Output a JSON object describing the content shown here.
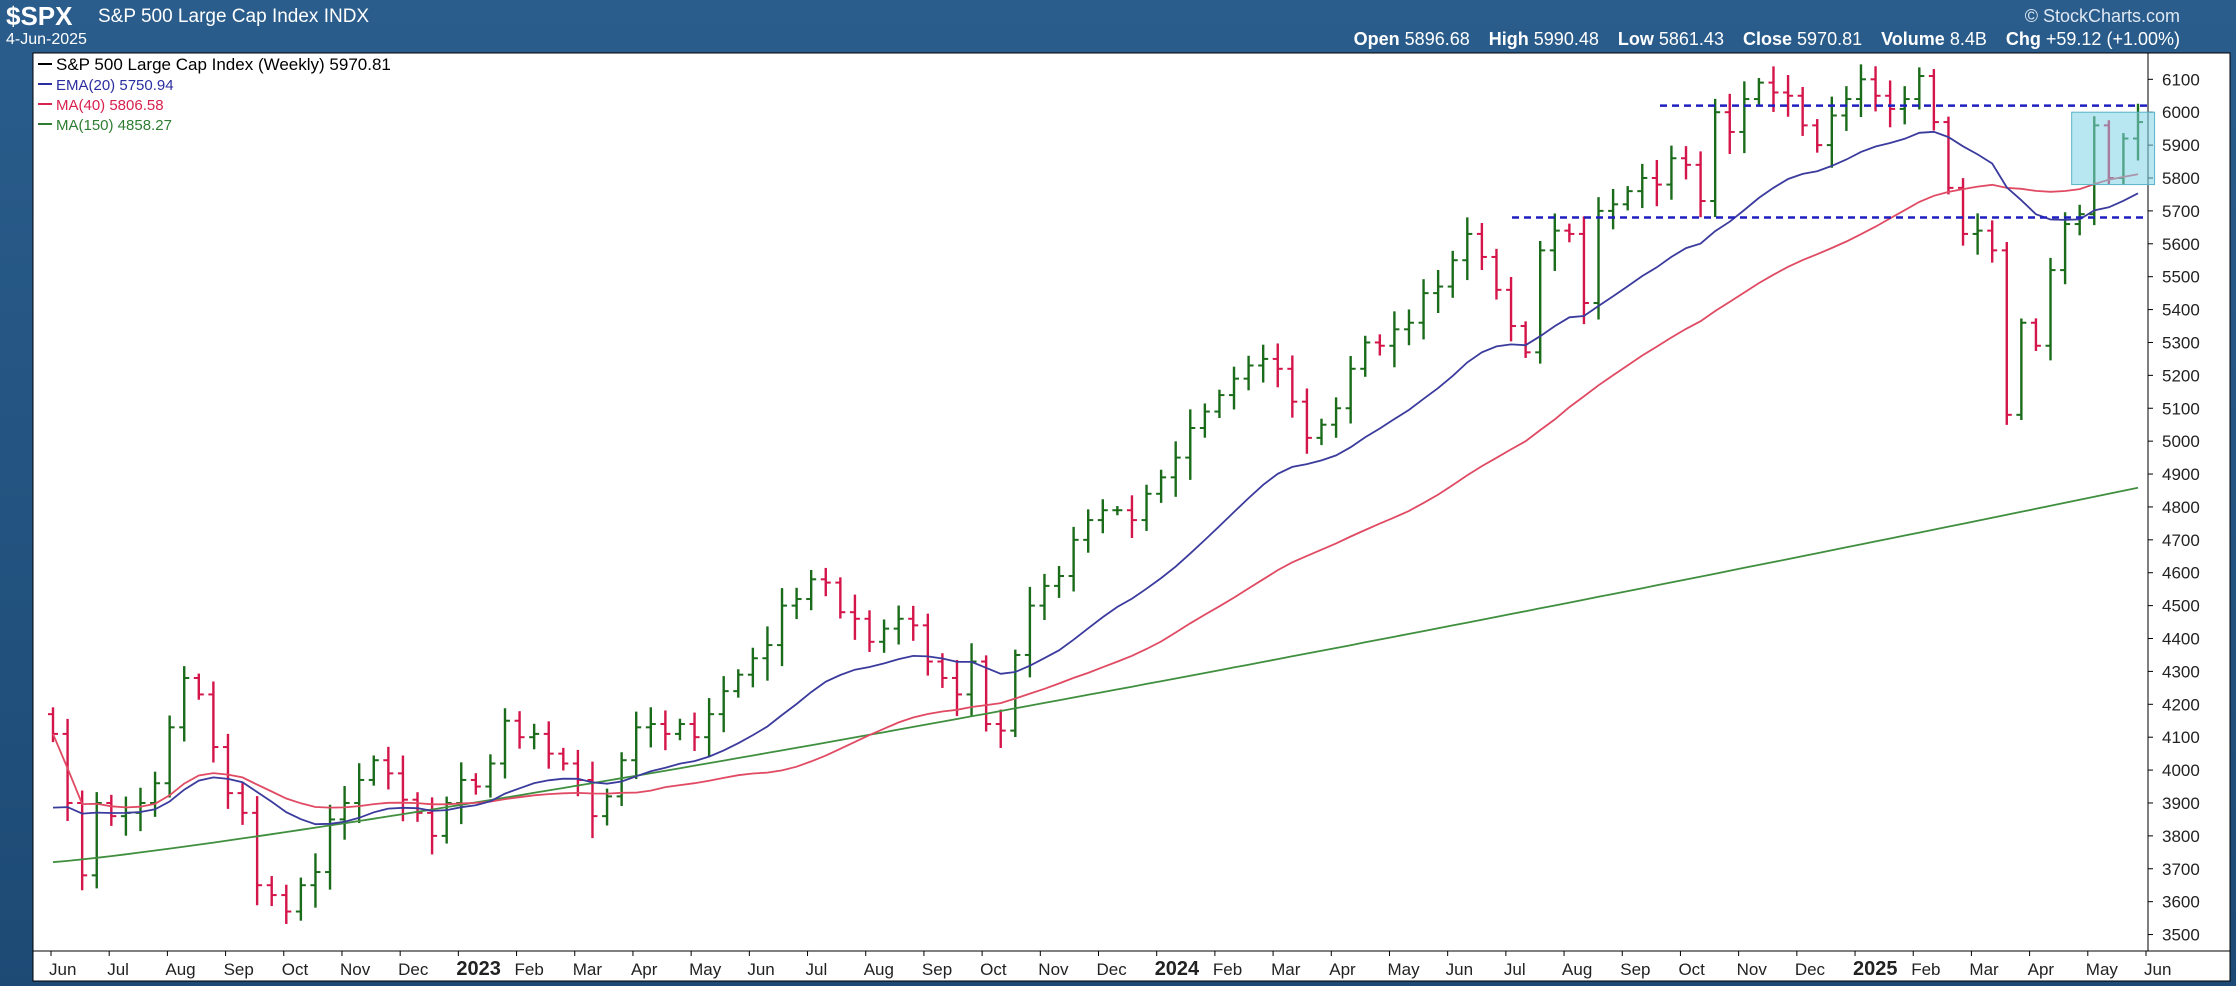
{
  "header": {
    "symbol": "$SPX",
    "name": "S&P 500 Large Cap Index",
    "exchange": "INDX",
    "date": "4-Jun-2025",
    "brand": "© StockCharts.com",
    "open_label": "Open",
    "open": "5896.68",
    "high_label": "High",
    "high": "5990.48",
    "low_label": "Low",
    "low": "5861.43",
    "close_label": "Close",
    "close": "5970.81",
    "volume_label": "Volume",
    "volume": "8.4B",
    "chg_label": "Chg",
    "chg": "+59.12 (+1.00%)"
  },
  "legend": [
    {
      "text": "S&P 500 Large Cap Index (Weekly) 5970.81",
      "color": "#000000"
    },
    {
      "text": "EMA(20) 5750.94",
      "color": "#2b2ea0"
    },
    {
      "text": "MA(40) 5806.58",
      "color": "#d9214e"
    },
    {
      "text": "MA(150) 4858.27",
      "color": "#2e7d32"
    }
  ],
  "colors": {
    "up": "#1a6b1a",
    "down": "#d4154a",
    "ema20": "#3b3b9e",
    "ma40": "#e04a63",
    "ma150": "#3f8f3f",
    "support": "#1f1fbf",
    "highlight": "#7fd3e6"
  },
  "chart_data": {
    "type": "ohlc",
    "title": "S&P 500 Large Cap Index (Weekly)",
    "ylim": [
      3450,
      6180
    ],
    "y_ticks": [
      3500,
      3600,
      3700,
      3800,
      3900,
      4000,
      4100,
      4200,
      4300,
      4400,
      4500,
      4600,
      4700,
      4800,
      4900,
      5000,
      5100,
      5200,
      5300,
      5400,
      5500,
      5600,
      5700,
      5800,
      5900,
      6000,
      6100
    ],
    "x_months": [
      "Jun",
      "Jul",
      "Aug",
      "Sep",
      "Oct",
      "Nov",
      "Dec",
      "2023",
      "Feb",
      "Mar",
      "Apr",
      "May",
      "Jun",
      "Jul",
      "Aug",
      "Sep",
      "Oct",
      "Nov",
      "Dec",
      "2024",
      "Feb",
      "Mar",
      "Apr",
      "May",
      "Jun",
      "Jul",
      "Aug",
      "Sep",
      "Oct",
      "Nov",
      "Dec",
      "2025",
      "Feb",
      "Mar",
      "Apr",
      "May",
      "Jun"
    ],
    "bar_closes": [
      4110,
      3900,
      3680,
      3900,
      3860,
      3870,
      3900,
      3960,
      4130,
      4280,
      4230,
      4070,
      3930,
      3870,
      3650,
      3620,
      3570,
      3650,
      3690,
      3850,
      3900,
      3970,
      4030,
      3990,
      3910,
      3870,
      3800,
      3900,
      3970,
      3950,
      4020,
      4150,
      4100,
      4110,
      4050,
      4020,
      3970,
      3860,
      3920,
      4030,
      4130,
      4140,
      4110,
      4140,
      4100,
      4170,
      4240,
      4290,
      4340,
      4380,
      4500,
      4520,
      4580,
      4570,
      4480,
      4460,
      4390,
      4430,
      4460,
      4440,
      4330,
      4280,
      4230,
      4330,
      4140,
      4120,
      4350,
      4500,
      4560,
      4590,
      4700,
      4760,
      4790,
      4790,
      4760,
      4840,
      4890,
      4950,
      5040,
      5090,
      5140,
      5190,
      5230,
      5250,
      5220,
      5120,
      5010,
      5050,
      5100,
      5220,
      5300,
      5290,
      5340,
      5360,
      5450,
      5470,
      5550,
      5630,
      5560,
      5460,
      5350,
      5270,
      5580,
      5640,
      5630,
      5420,
      5700,
      5720,
      5760,
      5800,
      5780,
      5860,
      5840,
      5730,
      6000,
      5940,
      6040,
      6090,
      6060,
      6050,
      5960,
      5900,
      5990,
      6040,
      6100,
      6050,
      6010,
      6040,
      6110,
      5970,
      5770,
      5630,
      5640,
      5580,
      5080,
      5360,
      5290,
      5520,
      5660,
      5690,
      5960,
      5800,
      5920,
      5970
    ],
    "moving_averages": [
      {
        "name": "EMA(20)",
        "last": 5750.94
      },
      {
        "name": "MA(40)",
        "last": 5806.58
      },
      {
        "name": "MA(150)",
        "last": 4858.27
      }
    ],
    "annotations": [
      {
        "type": "support_line",
        "y": 6020
      },
      {
        "type": "support_line",
        "y": 5680
      },
      {
        "type": "highlight_box",
        "y_range": [
          5780,
          6000
        ]
      }
    ]
  }
}
